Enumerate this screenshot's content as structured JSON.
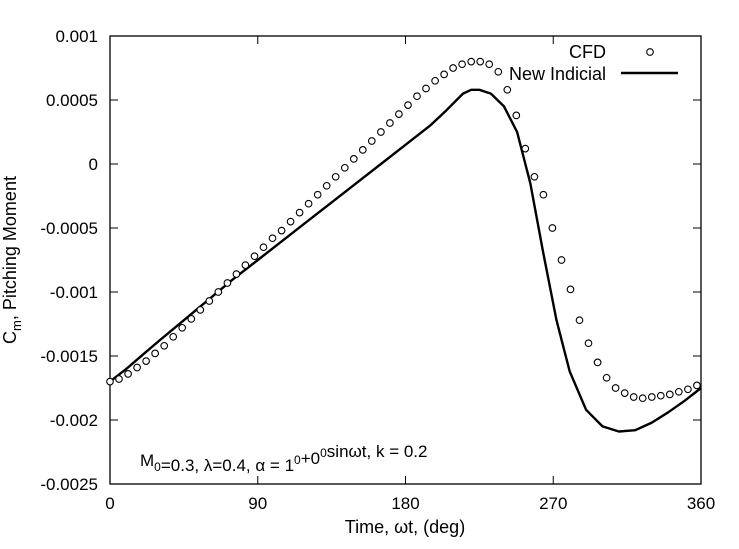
{
  "chart_data": {
    "type": "line",
    "xlabel": "Time, ωt, (deg)",
    "ylabel": "C",
    "ylabel_sub": "m",
    "ylabel_rest": ", Pitching Moment",
    "xlim": [
      0,
      360
    ],
    "ylim": [
      -0.0025,
      0.001
    ],
    "x_ticks": [
      0,
      90,
      180,
      270,
      360
    ],
    "x_tick_labels": [
      "0",
      "90",
      "180",
      "270",
      "360"
    ],
    "y_ticks": [
      0.001,
      0.0005,
      0,
      -0.0005,
      -0.001,
      -0.0015,
      -0.002,
      -0.0025
    ],
    "y_tick_labels": [
      "0.001",
      "0.0005",
      "0",
      "-0.0005",
      "-0.001",
      "-0.0015",
      "-0.002",
      "-0.0025"
    ],
    "grid": false,
    "legend_position": "top-right",
    "annotation": {
      "parts": [
        {
          "t": "M"
        },
        {
          "t": "0",
          "sub": true
        },
        {
          "t": "=0.3, λ=0.4, α = 1"
        },
        {
          "t": "0",
          "sup": true
        },
        {
          "t": "+0"
        },
        {
          "t": "0",
          "sup": true
        },
        {
          "t": "sinωt, k = 0.2"
        }
      ]
    },
    "series": [
      {
        "name": "CFD",
        "style": "open-circle-markers",
        "color": "#000000",
        "x": [
          0,
          5.5,
          11,
          16.5,
          22,
          27.5,
          33,
          38.5,
          44,
          49.5,
          55,
          60.5,
          66,
          71.5,
          77,
          82.5,
          88,
          93.5,
          99,
          104.5,
          110,
          115.5,
          121,
          126.5,
          132,
          137.5,
          143,
          148.5,
          154,
          159.5,
          165,
          170.5,
          176,
          181.5,
          187,
          192.5,
          198,
          203.5,
          209,
          214.5,
          220,
          225.5,
          231,
          236.5,
          242,
          247.5,
          253,
          258.5,
          264,
          269.5,
          275,
          280.5,
          286,
          291.5,
          297,
          302.5,
          308,
          313.5,
          319,
          324.5,
          330,
          335.5,
          341,
          346.5,
          352,
          357.5
        ],
        "y": [
          -0.0017,
          -0.00168,
          -0.00164,
          -0.00159,
          -0.00154,
          -0.00148,
          -0.00142,
          -0.00135,
          -0.00128,
          -0.00121,
          -0.00114,
          -0.00107,
          -0.001,
          -0.00093,
          -0.00086,
          -0.00079,
          -0.00072,
          -0.00065,
          -0.00058,
          -0.00052,
          -0.00045,
          -0.00038,
          -0.00031,
          -0.00024,
          -0.00017,
          -0.0001,
          -3e-05,
          4e-05,
          0.00011,
          0.00018,
          0.00025,
          0.00032,
          0.00039,
          0.00046,
          0.00053,
          0.00059,
          0.00065,
          0.0007,
          0.00075,
          0.00078,
          0.0008,
          0.0008,
          0.00078,
          0.00072,
          0.00058,
          0.00038,
          0.00012,
          -0.0001,
          -0.00024,
          -0.0005,
          -0.00075,
          -0.00098,
          -0.00122,
          -0.0014,
          -0.00155,
          -0.00167,
          -0.00175,
          -0.00179,
          -0.00182,
          -0.00183,
          -0.00182,
          -0.00181,
          -0.0018,
          -0.00178,
          -0.00176,
          -0.00173
        ]
      },
      {
        "name": "New Indicial",
        "style": "solid-line",
        "color": "#000000",
        "x": [
          0,
          10,
          20,
          30,
          45,
          60,
          75,
          90,
          105,
          120,
          135,
          150,
          165,
          180,
          195,
          205,
          215,
          220,
          225,
          232,
          240,
          248,
          256,
          264,
          272,
          280,
          290,
          300,
          310,
          320,
          330,
          340,
          350,
          360
        ],
        "y": [
          -0.0017,
          -0.0016,
          -0.00149,
          -0.00138,
          -0.00122,
          -0.00106,
          -0.0009,
          -0.00075,
          -0.0006,
          -0.00045,
          -0.0003,
          -0.00015,
          0,
          0.00015,
          0.0003,
          0.00042,
          0.00055,
          0.00058,
          0.00058,
          0.00055,
          0.00045,
          0.00025,
          -0.00015,
          -0.0007,
          -0.00122,
          -0.00162,
          -0.00192,
          -0.00205,
          -0.00209,
          -0.00208,
          -0.00202,
          -0.00194,
          -0.00185,
          -0.00175
        ]
      }
    ]
  }
}
